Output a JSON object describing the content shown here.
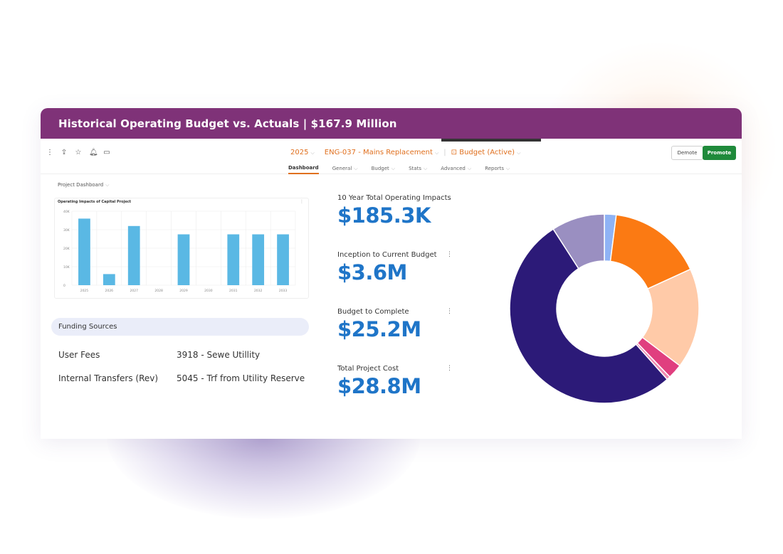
{
  "banner": {
    "title": "Historical Operating Budget vs. Actuals | $167.9 Million"
  },
  "header": {
    "year": "2025",
    "project": "ENG-037 - Mains Replacement",
    "status": "Budget (Active)",
    "icons": [
      "more-vertical-icon",
      "share-icon",
      "star-icon",
      "bell-icon",
      "comment-icon"
    ],
    "demote_label": "Demote",
    "promote_label": "Promote",
    "promote_color": "#1f8a3b",
    "accent": "#e0701f"
  },
  "tabs": [
    {
      "label": "Dashboard",
      "active": true
    },
    {
      "label": "General"
    },
    {
      "label": "Budget"
    },
    {
      "label": "Stats"
    },
    {
      "label": "Advanced"
    },
    {
      "label": "Reports"
    }
  ],
  "dashboard_label": "Project Dashboard",
  "chart_data": [
    {
      "type": "bar",
      "title": "Operating Impacts of Capital Project",
      "categories": [
        "2025",
        "2026",
        "2027",
        "2028",
        "2029",
        "2030",
        "2031",
        "2032",
        "2033"
      ],
      "values": [
        36,
        6,
        32,
        0,
        27.5,
        0,
        27.5,
        27.5,
        27.5
      ],
      "ylim": [
        0,
        40
      ],
      "yticks": [
        "0",
        "10K",
        "20K",
        "30K",
        "40K"
      ],
      "color": "#5ab8e4",
      "grid": true
    },
    {
      "type": "pie",
      "values": [
        2,
        16,
        17,
        2.5,
        0.6,
        52,
        9
      ],
      "colors": [
        "#8fb3f5",
        "#fb7a13",
        "#ffcaa8",
        "#e03f7f",
        "#f08ab0",
        "#2c1a78",
        "#9a8fc1"
      ],
      "donut": true
    }
  ],
  "funding": {
    "title": "Funding Sources",
    "rows": [
      {
        "name": "User Fees",
        "account": "3918 - Sewe Utillity"
      },
      {
        "name": "Internal Transfers (Rev)",
        "account": "5045 - Trf from Utility Reserve"
      }
    ]
  },
  "metrics": [
    {
      "label": "10 Year Total Operating Impacts",
      "value": "$185.3K"
    },
    {
      "label": "Inception to Current Budget",
      "value": "$3.6M"
    },
    {
      "label": "Budget to Complete",
      "value": "$25.2M"
    },
    {
      "label": "Total Project Cost",
      "value": "$28.8M"
    }
  ]
}
